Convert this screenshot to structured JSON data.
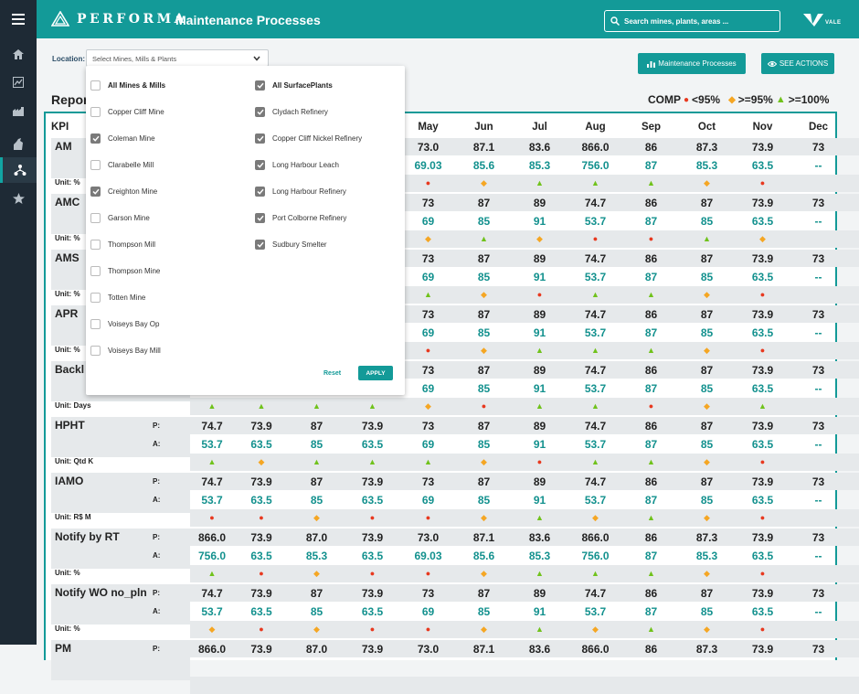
{
  "app": {
    "brand": "PERFORMA",
    "title": "Maintenance Processes",
    "company": "VALE"
  },
  "search": {
    "placeholder": "Search mines, plants, areas ..."
  },
  "location": {
    "label": "Location:",
    "select_text": "Select Mines, Mills & Plants"
  },
  "buttons": {
    "maintenance": "Maintenance Processes",
    "see_actions": "SEE ACTIONS"
  },
  "report": {
    "title": "Repor"
  },
  "legend": {
    "label": "COMP",
    "red": "<95%",
    "orange": ">=95%",
    "green": ">=100%"
  },
  "colors": {
    "accent": "#139a98",
    "red": "#e8391f",
    "orange": "#f5a623",
    "green": "#70c21b",
    "sidebar": "#1e2a35"
  },
  "sidebar_icons": [
    "menu-icon",
    "home-icon",
    "chart-icon",
    "factory-icon",
    "tool-icon",
    "process-icon",
    "star-icon"
  ],
  "table": {
    "kpi_header": "KPI",
    "months": [
      "Jan",
      "Feb",
      "Mar",
      "Apr",
      "May",
      "Jun",
      "Jul",
      "Aug",
      "Sep",
      "Oct",
      "Nov",
      "Dec"
    ],
    "p_label": "P:",
    "a_label": "A:",
    "rows": [
      {
        "name": "AM",
        "unit": "Unit: %",
        "plan": [
          "",
          "",
          "",
          "",
          "73.0",
          "87.1",
          "83.6",
          "866.0",
          "86",
          "87.3",
          "73.9",
          "73"
        ],
        "actual": [
          "",
          "",
          "",
          "",
          "69.03",
          "85.6",
          "85.3",
          "756.0",
          "87",
          "85.3",
          "63.5",
          "--"
        ],
        "status": [
          "",
          "",
          "",
          "",
          "r",
          "o",
          "g",
          "g",
          "g",
          "o",
          "r",
          ""
        ]
      },
      {
        "name": "AMC",
        "unit": "Unit: %",
        "plan": [
          "",
          "",
          "",
          "",
          "73",
          "87",
          "89",
          "74.7",
          "86",
          "87",
          "73.9",
          "73"
        ],
        "actual": [
          "",
          "",
          "",
          "",
          "69",
          "85",
          "91",
          "53.7",
          "87",
          "85",
          "63.5",
          "--"
        ],
        "status": [
          "",
          "",
          "",
          "",
          "o",
          "g",
          "o",
          "r",
          "r",
          "g",
          "o",
          ""
        ]
      },
      {
        "name": "AMS",
        "unit": "Unit: %",
        "plan": [
          "",
          "",
          "",
          "",
          "73",
          "87",
          "89",
          "74.7",
          "86",
          "87",
          "73.9",
          "73"
        ],
        "actual": [
          "",
          "",
          "",
          "",
          "69",
          "85",
          "91",
          "53.7",
          "87",
          "85",
          "63.5",
          "--"
        ],
        "status": [
          "",
          "",
          "",
          "",
          "g",
          "o",
          "r",
          "g",
          "g",
          "o",
          "r",
          ""
        ]
      },
      {
        "name": "APR",
        "unit": "Unit: %",
        "plan": [
          "",
          "",
          "",
          "",
          "73",
          "87",
          "89",
          "74.7",
          "86",
          "87",
          "73.9",
          "73"
        ],
        "actual": [
          "",
          "",
          "",
          "",
          "69",
          "85",
          "91",
          "53.7",
          "87",
          "85",
          "63.5",
          "--"
        ],
        "status": [
          "",
          "",
          "",
          "",
          "r",
          "o",
          "g",
          "g",
          "g",
          "o",
          "r",
          ""
        ]
      },
      {
        "name": "Backl",
        "unit": "Unit: Days",
        "plan": [
          "",
          "",
          "",
          "",
          "73",
          "87",
          "89",
          "74.7",
          "86",
          "87",
          "73.9",
          "73"
        ],
        "actual": [
          "",
          "",
          "",
          "",
          "69",
          "85",
          "91",
          "53.7",
          "87",
          "85",
          "63.5",
          "--"
        ],
        "status": [
          "g",
          "g",
          "g",
          "g",
          "o",
          "r",
          "g",
          "g",
          "r",
          "o",
          "g",
          ""
        ]
      },
      {
        "name": "HPHT",
        "unit": "Unit: Qtd K",
        "plan": [
          "74.7",
          "73.9",
          "87",
          "73.9",
          "73",
          "87",
          "89",
          "74.7",
          "86",
          "87",
          "73.9",
          "73"
        ],
        "actual": [
          "53.7",
          "63.5",
          "85",
          "63.5",
          "69",
          "85",
          "91",
          "53.7",
          "87",
          "85",
          "63.5",
          "--"
        ],
        "status": [
          "g",
          "o",
          "g",
          "g",
          "g",
          "o",
          "r",
          "g",
          "g",
          "o",
          "r",
          ""
        ]
      },
      {
        "name": "IAMO",
        "unit": "Unit: R$ M",
        "plan": [
          "74.7",
          "73.9",
          "87",
          "73.9",
          "73",
          "87",
          "89",
          "74.7",
          "86",
          "87",
          "73.9",
          "73"
        ],
        "actual": [
          "53.7",
          "63.5",
          "85",
          "63.5",
          "69",
          "85",
          "91",
          "53.7",
          "87",
          "85",
          "63.5",
          "--"
        ],
        "status": [
          "r",
          "r",
          "o",
          "r",
          "r",
          "o",
          "g",
          "o",
          "g",
          "o",
          "r",
          ""
        ]
      },
      {
        "name": "Notify by RT",
        "unit": "Unit: %",
        "plan": [
          "866.0",
          "73.9",
          "87.0",
          "73.9",
          "73.0",
          "87.1",
          "83.6",
          "866.0",
          "86",
          "87.3",
          "73.9",
          "73"
        ],
        "actual": [
          "756.0",
          "63.5",
          "85.3",
          "63.5",
          "69.03",
          "85.6",
          "85.3",
          "756.0",
          "87",
          "85.3",
          "63.5",
          "--"
        ],
        "status": [
          "g",
          "r",
          "o",
          "r",
          "r",
          "o",
          "g",
          "g",
          "g",
          "o",
          "r",
          ""
        ]
      },
      {
        "name": "Notify WO no_pln",
        "unit": "Unit: %",
        "plan": [
          "74.7",
          "73.9",
          "87",
          "73.9",
          "73",
          "87",
          "89",
          "74.7",
          "86",
          "87",
          "73.9",
          "73"
        ],
        "actual": [
          "53.7",
          "63.5",
          "85",
          "63.5",
          "69",
          "85",
          "91",
          "53.7",
          "87",
          "85",
          "63.5",
          "--"
        ],
        "status": [
          "o",
          "r",
          "o",
          "r",
          "r",
          "o",
          "g",
          "o",
          "g",
          "o",
          "r",
          ""
        ]
      },
      {
        "name": "PM",
        "unit": "",
        "plan": [
          "866.0",
          "73.9",
          "87.0",
          "73.9",
          "73.0",
          "87.1",
          "83.6",
          "866.0",
          "86",
          "87.3",
          "73.9",
          "73"
        ],
        "actual": [],
        "status": []
      }
    ]
  },
  "dropdown": {
    "left": [
      {
        "label": "All Mines & Mills",
        "checked": false,
        "bold": true
      },
      {
        "label": "Copper Cliff Mine",
        "checked": false
      },
      {
        "label": "Coleman Mine",
        "checked": true
      },
      {
        "label": "Clarabelle Mill",
        "checked": false
      },
      {
        "label": "Creighton Mine",
        "checked": true
      },
      {
        "label": "Garson Mine",
        "checked": false
      },
      {
        "label": "Thompson Mill",
        "checked": false
      },
      {
        "label": "Thompson Mine",
        "checked": false
      },
      {
        "label": "Totten Mine",
        "checked": false
      },
      {
        "label": "Voiseys Bay Op",
        "checked": false
      },
      {
        "label": "Voiseys Bay Mill",
        "checked": false
      }
    ],
    "right": [
      {
        "label": "All SurfacePlants",
        "checked": true,
        "bold": true
      },
      {
        "label": "Clydach Refinery",
        "checked": true
      },
      {
        "label": "Copper Cliff Nickel Refinery",
        "checked": true
      },
      {
        "label": "Long Harbour Leach",
        "checked": true
      },
      {
        "label": "Long Harbour Refinery",
        "checked": true
      },
      {
        "label": "Port Colborne Refinery",
        "checked": true
      },
      {
        "label": "Sudbury Smelter",
        "checked": true
      }
    ],
    "reset_label": "Reset",
    "apply_label": "APPLY"
  }
}
